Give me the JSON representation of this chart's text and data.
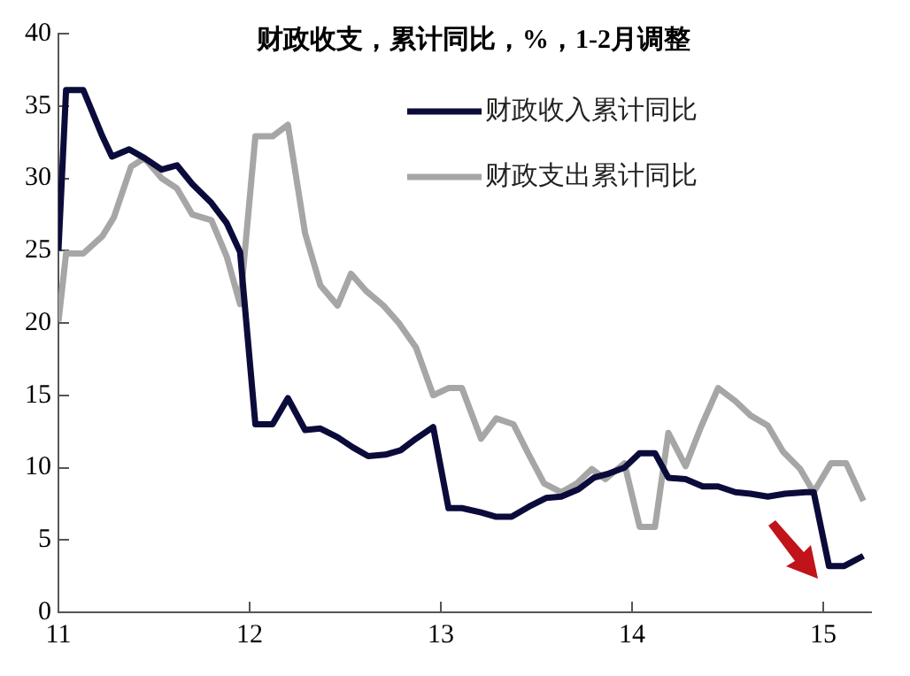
{
  "chart_data": {
    "type": "line",
    "title": "财政收支，累计同比，%，1-2月调整",
    "x": [
      2011.0,
      2011.04,
      2011.13,
      2011.23,
      2011.28,
      2011.37,
      2011.45,
      2011.54,
      2011.62,
      2011.7,
      2011.8,
      2011.88,
      2011.95,
      2012.03,
      2012.12,
      2012.2,
      2012.29,
      2012.37,
      2012.46,
      2012.54,
      2012.62,
      2012.71,
      2012.79,
      2012.87,
      2012.96,
      2013.04,
      2013.11,
      2013.21,
      2013.29,
      2013.37,
      2013.46,
      2013.55,
      2013.63,
      2013.72,
      2013.8,
      2013.88,
      2013.96,
      2014.04,
      2014.12,
      2014.19,
      2014.28,
      2014.37,
      2014.45,
      2014.54,
      2014.62,
      2014.71,
      2014.8,
      2014.91,
      2014.95,
      2015.03,
      2015.11,
      2015.21
    ],
    "series": [
      {
        "name": "财政收入累计同比",
        "color": "#0b0b3b",
        "values": [
          25.0,
          36.1,
          36.1,
          32.9,
          31.5,
          32.0,
          31.4,
          30.6,
          30.9,
          29.6,
          28.3,
          26.9,
          24.9,
          13.0,
          13.0,
          14.8,
          12.6,
          12.7,
          12.1,
          11.4,
          10.8,
          10.9,
          11.2,
          12.0,
          12.8,
          7.2,
          7.2,
          6.9,
          6.6,
          6.6,
          7.3,
          7.9,
          8.0,
          8.5,
          9.3,
          9.6,
          10.0,
          11.0,
          11.0,
          9.3,
          9.2,
          8.7,
          8.7,
          8.3,
          8.2,
          8.0,
          8.2,
          8.3,
          8.3,
          3.2,
          3.2,
          3.9
        ]
      },
      {
        "name": "财政支出累计同比",
        "color": "#a6a6a6",
        "x": [
          2011.0,
          2011.04,
          2011.13,
          2011.23,
          2011.29,
          2011.38,
          2011.45,
          2011.54,
          2011.62,
          2011.7,
          2011.8,
          2011.88,
          2011.95,
          2012.03,
          2012.12,
          2012.2,
          2012.29,
          2012.37,
          2012.46,
          2012.53,
          2012.61,
          2012.7,
          2012.78,
          2012.87,
          2012.96,
          2013.04,
          2013.11,
          2013.21,
          2013.29,
          2013.38,
          2013.46,
          2013.54,
          2013.63,
          2013.71,
          2013.79,
          2013.86,
          2013.96,
          2014.04,
          2014.12,
          2014.19,
          2014.28,
          2014.36,
          2014.45,
          2014.54,
          2014.62,
          2014.71,
          2014.79,
          2014.88,
          2014.95,
          2015.04,
          2015.12,
          2015.21
        ],
        "values": [
          20.1,
          24.8,
          24.8,
          26.0,
          27.3,
          30.8,
          31.4,
          30.0,
          29.3,
          27.5,
          27.1,
          24.6,
          21.3,
          32.9,
          32.9,
          33.7,
          26.2,
          22.6,
          21.2,
          23.4,
          22.2,
          21.2,
          20.0,
          18.3,
          15.0,
          15.5,
          15.5,
          12.0,
          13.4,
          13.0,
          10.9,
          8.9,
          8.3,
          8.9,
          9.9,
          9.2,
          10.3,
          5.9,
          5.9,
          12.4,
          10.1,
          12.8,
          15.5,
          14.6,
          13.6,
          12.9,
          11.1,
          9.9,
          8.3,
          10.3,
          10.3,
          7.7
        ]
      }
    ],
    "xlim": [
      2011,
      2015.25
    ],
    "xticks": [
      {
        "value": 2011,
        "label": "11"
      },
      {
        "value": 2012,
        "label": "12"
      },
      {
        "value": 2013,
        "label": "13"
      },
      {
        "value": 2014,
        "label": "14"
      },
      {
        "value": 2015,
        "label": "15"
      }
    ],
    "ylim": [
      0,
      40
    ],
    "yticks": [
      0,
      5,
      10,
      15,
      20,
      25,
      30,
      35,
      40
    ],
    "grid": false,
    "legend": "top right",
    "marker": "none",
    "line_style": "solid"
  }
}
